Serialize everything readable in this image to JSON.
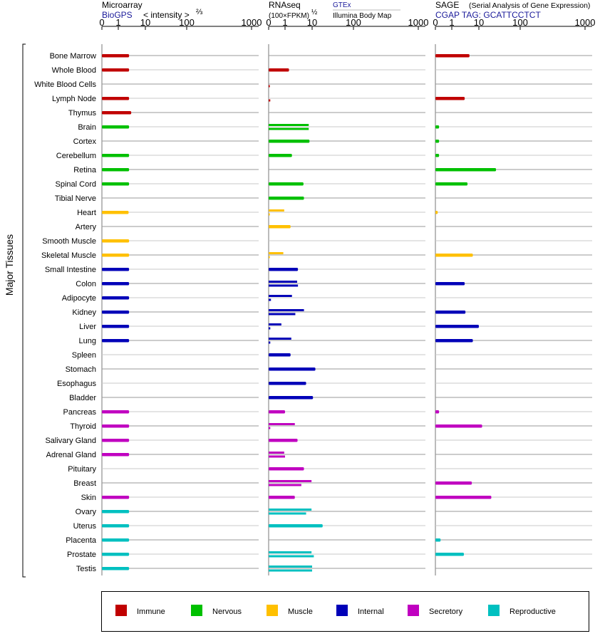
{
  "chart_data": {
    "type": "bar",
    "y_axis_label": "Major Tissues",
    "x_tick_labels": [
      "0",
      "1",
      "10",
      "100",
      "1000"
    ],
    "x_scale": "power-law (exponent 2/3 / 1/2 compressed), range 0–1000",
    "categories": [
      "Bone Marrow",
      "Whole Blood",
      "White Blood Cells",
      "Lymph Node",
      "Thymus",
      "Brain",
      "Cortex",
      "Cerebellum",
      "Retina",
      "Spinal Cord",
      "Tibial Nerve",
      "Heart",
      "Artery",
      "Smooth Muscle",
      "Skeletal Muscle",
      "Small Intestine",
      "Colon",
      "Adipocyte",
      "Kidney",
      "Liver",
      "Lung",
      "Spleen",
      "Stomach",
      "Esophagus",
      "Bladder",
      "Pancreas",
      "Thyroid",
      "Salivary Gland",
      "Adrenal Gland",
      "Pituitary",
      "Breast",
      "Skin",
      "Ovary",
      "Uterus",
      "Placenta",
      "Prostate",
      "Testis"
    ],
    "category_group": [
      "Immune",
      "Immune",
      "Immune",
      "Immune",
      "Immune",
      "Nervous",
      "Nervous",
      "Nervous",
      "Nervous",
      "Nervous",
      "Nervous",
      "Muscle",
      "Muscle",
      "Muscle",
      "Muscle",
      "Internal",
      "Internal",
      "Internal",
      "Internal",
      "Internal",
      "Internal",
      "Internal",
      "Internal",
      "Internal",
      "Internal",
      "Secretory",
      "Secretory",
      "Secretory",
      "Secretory",
      "Secretory",
      "Secretory",
      "Secretory",
      "Reproductive",
      "Reproductive",
      "Reproductive",
      "Reproductive",
      "Reproductive"
    ],
    "panels": [
      {
        "title": "Microarray",
        "subtitle": "BioGPS",
        "subtitle2": "< intensity >",
        "exponent": "⅔",
        "values": [
          2.5,
          2.5,
          null,
          2.5,
          3.0,
          2.5,
          null,
          2.5,
          2.5,
          2.5,
          null,
          2.4,
          null,
          2.5,
          2.5,
          2.5,
          2.5,
          2.5,
          2.5,
          2.5,
          2.5,
          null,
          null,
          null,
          null,
          2.5,
          2.5,
          2.5,
          2.5,
          null,
          null,
          2.5,
          2.5,
          2.5,
          2.5,
          2.5,
          2.5
        ]
      },
      {
        "title": "RNAseq",
        "subtitle": "(100×FPKM)",
        "exponent": "½",
        "source1": "GTEx",
        "source2": "Illumina Body Map",
        "values": [
          null,
          1.4,
          null,
          null,
          null,
          7.5,
          8.0,
          1.8,
          null,
          4.8,
          5.0,
          0.9,
          1.6,
          null,
          0.8,
          3.0,
          2.8,
          1.8,
          5.0,
          0.6,
          1.7,
          1.6,
          12.0,
          6.0,
          10.5,
          1.0,
          2.3,
          2.9,
          0.9,
          5.0,
          9.5,
          2.3,
          9.5,
          18.0,
          null,
          9.5,
          10.0
        ],
        "values2": [
          null,
          null,
          0.005,
          0.01,
          null,
          7.5,
          null,
          null,
          null,
          null,
          null,
          0.005,
          null,
          null,
          0.005,
          null,
          3.0,
          0.02,
          2.4,
          0.01,
          0.01,
          null,
          null,
          null,
          null,
          null,
          0.01,
          null,
          1.0,
          null,
          4.0,
          null,
          6.0,
          null,
          null,
          11.0,
          10.0
        ]
      },
      {
        "title": "SAGE",
        "subtitle_note": "(Serial Analysis of Gene Expression)",
        "subtitle": "CGAP TAG: GCATTCCTCT",
        "values": [
          4.5,
          null,
          null,
          3.0,
          null,
          0.05,
          0.05,
          0.05,
          26.0,
          3.8,
          null,
          0.02,
          null,
          null,
          6.0,
          null,
          3.0,
          null,
          3.2,
          10.0,
          6.0,
          null,
          null,
          null,
          null,
          0.05,
          12.0,
          null,
          null,
          null,
          5.5,
          20.0,
          null,
          null,
          0.1,
          2.8,
          null
        ]
      }
    ],
    "legend": {
      "position": "bottom",
      "items": [
        {
          "label": "Immune",
          "color": "#c00000"
        },
        {
          "label": "Nervous",
          "color": "#00c000"
        },
        {
          "label": "Muscle",
          "color": "#ffc000"
        },
        {
          "label": "Internal",
          "color": "#0000b8"
        },
        {
          "label": "Secretory",
          "color": "#c000c0"
        },
        {
          "label": "Reproductive",
          "color": "#00c0c0"
        }
      ]
    }
  }
}
